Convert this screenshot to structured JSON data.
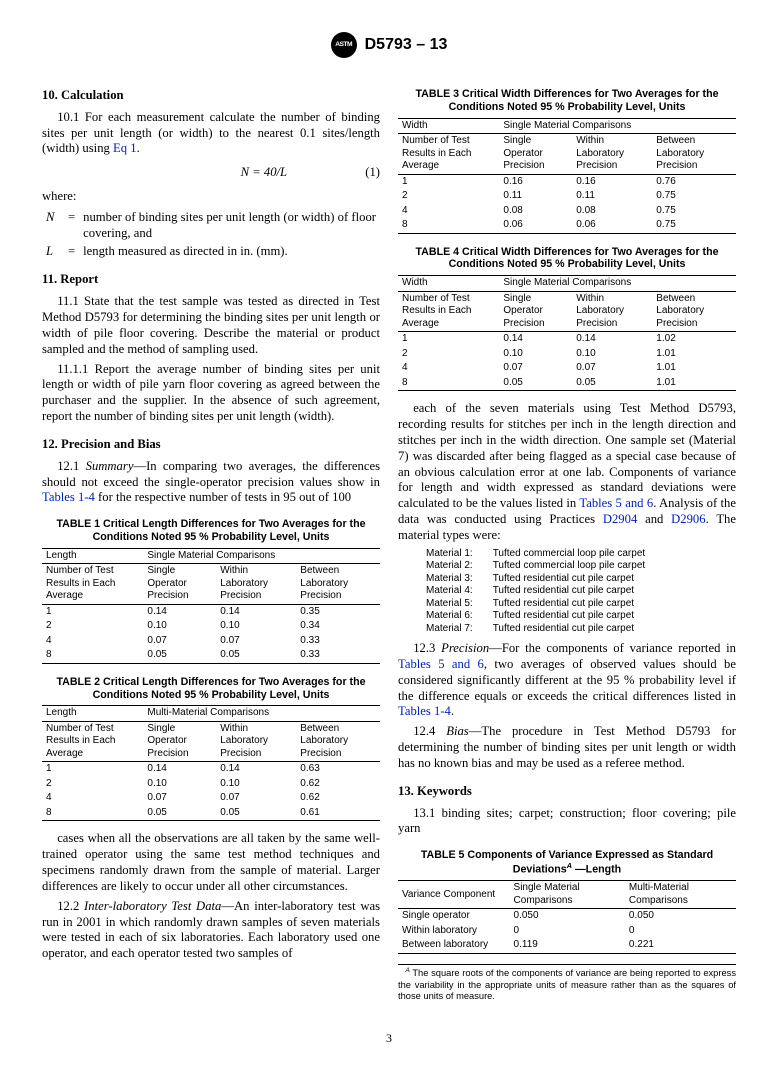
{
  "header": {
    "designation": "D5793 – 13"
  },
  "s10": {
    "head": "10.  Calculation",
    "p1": "10.1  For each measurement calculate the number of binding sites per unit length (or width) to the nearest 0.1 sites/length (width) using ",
    "p1link": "Eq 1",
    "p1after": ".",
    "eq": "N = 40/L",
    "eqnum": "(1)",
    "where": "where:",
    "N_def": "number of binding sites per unit length (or width) of floor covering, and",
    "L_def": "length measured as directed in in. (mm)."
  },
  "s11": {
    "head": "11.  Report",
    "p1": "11.1  State that the test sample was tested as directed in Test Method D5793 for determining the binding sites per unit length or width of pile floor covering. Describe the material or product sampled and the method of sampling used.",
    "p2": "11.1.1  Report the average number of binding sites per unit length or width of pile yarn floor covering as agreed between the purchaser and the supplier. In the absence of such agreement, report the number of binding sites per unit length (width)."
  },
  "s12": {
    "head": "12.  Precision and Bias",
    "p1a": "12.1  ",
    "p1em": "Summary",
    "p1b": "—In comparing two averages, the differences should not exceed the single-operator precision values show in ",
    "p1link": "Tables 1-4",
    "p1c": " for the respective number of tests in 95 out of 100",
    "contd": "cases when all the observations are all taken by the same well-trained operator using the same test method techniques and specimens randomly drawn from the sample of material. Larger differences are likely to occur under all other circumstances.",
    "p2a": "12.2  ",
    "p2em": "Inter-laboratory Test Data",
    "p2b": "—An inter-laboratory test was run in 2001 in which randomly drawn samples of seven materials were tested in each of six laboratories. Each laboratory used one operator, and each operator tested two samples of",
    "col2_a": "each of the seven materials using Test Method D5793, recording results for stitches per inch in the length direction and stitches per inch in the width direction. One sample set (Material 7) was discarded after being flagged as a special case because of an obvious calculation error at one lab. Components of variance for length and width expressed as standard deviations were calculated to be the values listed in ",
    "col2_link1": "Tables 5 and 6",
    "col2_b": ". Analysis of the data was conducted using Practices ",
    "col2_link2": "D2904",
    "col2_c": " and ",
    "col2_link3": "D2906",
    "col2_d": ". The material types were:",
    "p3a": "12.3  ",
    "p3em": "Precision",
    "p3b": "—For the components of variance reported in ",
    "p3link1": "Tables 5 and 6",
    "p3c": ", two averages of observed values should be considered significantly different at the 95 % probability level if the difference equals or exceeds the critical differences listed in ",
    "p3link2": "Tables 1-4",
    "p3d": ".",
    "p4a": "12.4  ",
    "p4em": "Bias",
    "p4b": "—The procedure in Test Method D5793 for determining the number of binding sites per unit length or width has no known bias and may be used as a referee method."
  },
  "s13": {
    "head": "13.  Keywords",
    "p1": "13.1  binding sites; carpet; construction; floor covering; pile yarn"
  },
  "materials": [
    [
      "Material 1:",
      "Tufted commercial loop pile carpet"
    ],
    [
      "Material 2:",
      "Tufted commercial loop pile carpet"
    ],
    [
      "Material 3:",
      "Tufted residential cut pile carpet"
    ],
    [
      "Material 4:",
      "Tufted residential cut pile carpet"
    ],
    [
      "Material 5:",
      "Tufted residential cut pile carpet"
    ],
    [
      "Material 6:",
      "Tufted residential cut pile carpet"
    ],
    [
      "Material 7:",
      "Tufted residential cut pile carpet"
    ]
  ],
  "t1": {
    "title": "TABLE 1 Critical Length Differences for Two Averages for the Conditions Noted 95 % Probability Level, Units",
    "h0": "Length",
    "hspan": "Single Material Comparisons",
    "h1": "Number of Test Results in Each Average",
    "h2": "Single Operator Precision",
    "h3": "Within Laboratory Precision",
    "h4": "Between Laboratory Precision",
    "rows": [
      [
        "1",
        "0.14",
        "0.14",
        "0.35"
      ],
      [
        "2",
        "0.10",
        "0.10",
        "0.34"
      ],
      [
        "4",
        "0.07",
        "0.07",
        "0.33"
      ],
      [
        "8",
        "0.05",
        "0.05",
        "0.33"
      ]
    ]
  },
  "t2": {
    "title": "TABLE 2 Critical Length Differences for Two Averages for the Conditions Noted 95 % Probability Level, Units",
    "h0": "Length",
    "hspan": "Multi-Material Comparisons",
    "rows": [
      [
        "1",
        "0.14",
        "0.14",
        "0.63"
      ],
      [
        "2",
        "0.10",
        "0.10",
        "0.62"
      ],
      [
        "4",
        "0.07",
        "0.07",
        "0.62"
      ],
      [
        "8",
        "0.05",
        "0.05",
        "0.61"
      ]
    ]
  },
  "t3": {
    "title": "TABLE 3 Critical Width Differences for Two Averages for the Conditions Noted 95 % Probability Level, Units",
    "h0": "Width",
    "hspan": "Single Material Comparisons",
    "rows": [
      [
        "1",
        "0.16",
        "0.16",
        "0.76"
      ],
      [
        "2",
        "0.11",
        "0.11",
        "0.75"
      ],
      [
        "4",
        "0.08",
        "0.08",
        "0.75"
      ],
      [
        "8",
        "0.06",
        "0.06",
        "0.75"
      ]
    ]
  },
  "t4": {
    "title": "TABLE 4 Critical Width Differences for Two Averages for the Conditions Noted 95 % Probability Level, Units",
    "h0": "Width",
    "hspan": "Single Material Comparisons",
    "rows": [
      [
        "1",
        "0.14",
        "0.14",
        "1.02"
      ],
      [
        "2",
        "0.10",
        "0.10",
        "1.01"
      ],
      [
        "4",
        "0.07",
        "0.07",
        "1.01"
      ],
      [
        "8",
        "0.05",
        "0.05",
        "1.01"
      ]
    ]
  },
  "t5": {
    "title_a": "TABLE 5 Components of Variance Expressed as Standard Deviations",
    "title_b": " —Length",
    "h1": "Variance Component",
    "h2": "Single Material Comparisons",
    "h3": "Multi-Material Comparisons",
    "rows": [
      [
        "Single operator",
        "0.050",
        "0.050"
      ],
      [
        "Within laboratory",
        "0",
        "0"
      ],
      [
        "Between laboratory",
        "0.119",
        "0.221"
      ]
    ],
    "fn_sup": "A",
    "fn": " The square roots of the components of variance are being reported to express the variability in the appropriate units of measure rather than as the squares of those units of measure."
  },
  "pagenum": "3"
}
